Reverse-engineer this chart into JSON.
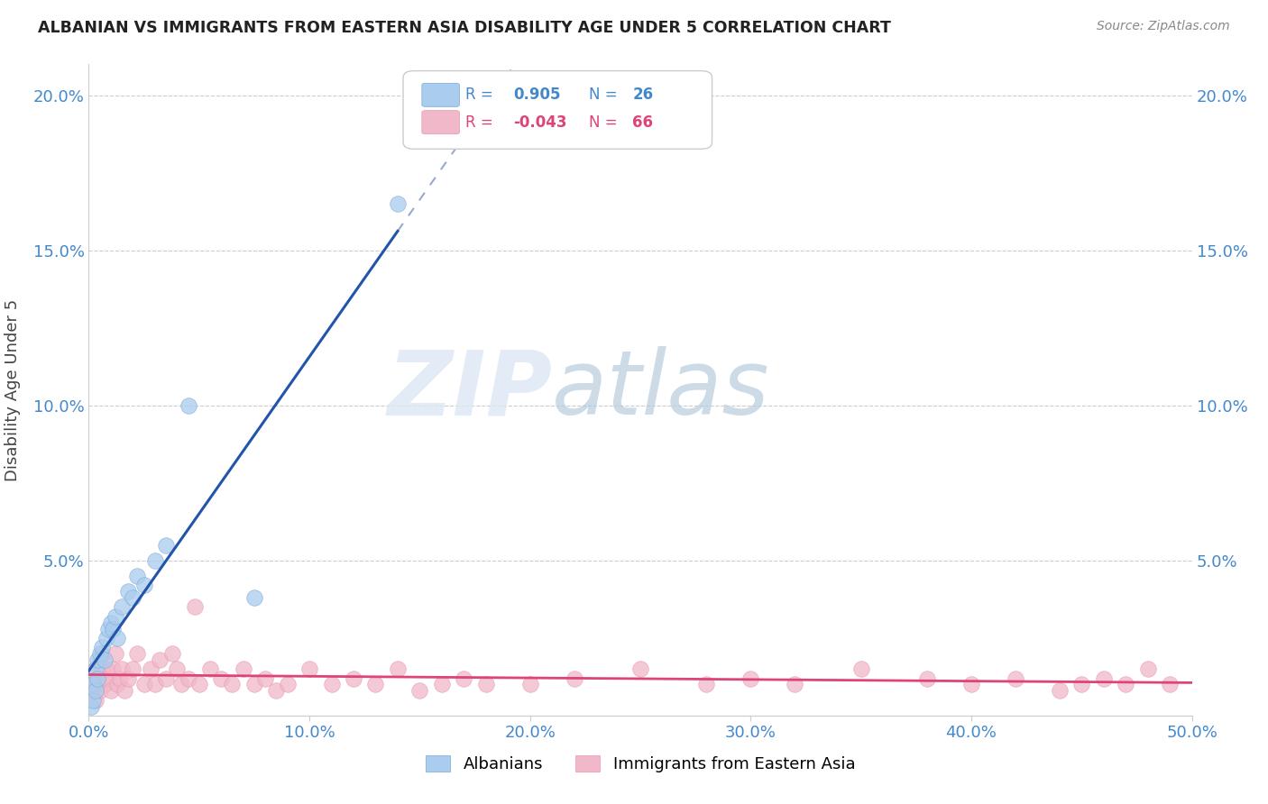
{
  "title": "ALBANIAN VS IMMIGRANTS FROM EASTERN ASIA DISABILITY AGE UNDER 5 CORRELATION CHART",
  "source": "Source: ZipAtlas.com",
  "ylabel": "Disability Age Under 5",
  "xlim": [
    0.0,
    0.5
  ],
  "ylim": [
    0.0,
    0.21
  ],
  "xticks": [
    0.0,
    0.1,
    0.2,
    0.3,
    0.4,
    0.5
  ],
  "xticklabels": [
    "0.0%",
    "10.0%",
    "20.0%",
    "30.0%",
    "40.0%",
    "50.0%"
  ],
  "yticks": [
    0.0,
    0.05,
    0.1,
    0.15,
    0.2
  ],
  "yticklabels_left": [
    "",
    "5.0%",
    "10.0%",
    "15.0%",
    "20.0%"
  ],
  "yticklabels_right": [
    "",
    "5.0%",
    "10.0%",
    "15.0%",
    "20.0%"
  ],
  "albanians_color": "#aaccee",
  "albanians_edge": "#7aa8d8",
  "immigrants_color": "#f0b8c8",
  "immigrants_edge": "#e896b0",
  "trend_blue": "#2255aa",
  "trend_pink": "#dd4477",
  "trend_dashed_color": "#99aacc",
  "legend_R_blue": "0.905",
  "legend_N_blue": "26",
  "legend_R_pink": "-0.043",
  "legend_N_pink": "66",
  "watermark_zip": "ZIP",
  "watermark_atlas": "atlas",
  "albanians_x": [
    0.001,
    0.002,
    0.002,
    0.003,
    0.003,
    0.004,
    0.004,
    0.005,
    0.006,
    0.007,
    0.008,
    0.009,
    0.01,
    0.011,
    0.012,
    0.013,
    0.015,
    0.018,
    0.02,
    0.022,
    0.025,
    0.03,
    0.035,
    0.045,
    0.075,
    0.14
  ],
  "albanians_y": [
    0.003,
    0.005,
    0.01,
    0.008,
    0.015,
    0.012,
    0.018,
    0.02,
    0.022,
    0.018,
    0.025,
    0.028,
    0.03,
    0.028,
    0.032,
    0.025,
    0.035,
    0.04,
    0.038,
    0.045,
    0.042,
    0.05,
    0.055,
    0.1,
    0.038,
    0.165
  ],
  "immigrants_x": [
    0.001,
    0.002,
    0.003,
    0.003,
    0.004,
    0.005,
    0.005,
    0.006,
    0.006,
    0.007,
    0.008,
    0.009,
    0.01,
    0.011,
    0.012,
    0.013,
    0.014,
    0.015,
    0.016,
    0.018,
    0.02,
    0.022,
    0.025,
    0.028,
    0.03,
    0.032,
    0.035,
    0.038,
    0.04,
    0.042,
    0.045,
    0.048,
    0.05,
    0.055,
    0.06,
    0.065,
    0.07,
    0.075,
    0.08,
    0.085,
    0.09,
    0.1,
    0.11,
    0.12,
    0.13,
    0.14,
    0.15,
    0.16,
    0.17,
    0.18,
    0.2,
    0.22,
    0.25,
    0.28,
    0.3,
    0.32,
    0.35,
    0.38,
    0.4,
    0.42,
    0.44,
    0.45,
    0.46,
    0.47,
    0.48,
    0.49
  ],
  "immigrants_y": [
    0.01,
    0.008,
    0.005,
    0.015,
    0.012,
    0.008,
    0.018,
    0.015,
    0.02,
    0.01,
    0.015,
    0.012,
    0.008,
    0.015,
    0.02,
    0.01,
    0.012,
    0.015,
    0.008,
    0.012,
    0.015,
    0.02,
    0.01,
    0.015,
    0.01,
    0.018,
    0.012,
    0.02,
    0.015,
    0.01,
    0.012,
    0.035,
    0.01,
    0.015,
    0.012,
    0.01,
    0.015,
    0.01,
    0.012,
    0.008,
    0.01,
    0.015,
    0.01,
    0.012,
    0.01,
    0.015,
    0.008,
    0.01,
    0.012,
    0.01,
    0.01,
    0.012,
    0.015,
    0.01,
    0.012,
    0.01,
    0.015,
    0.012,
    0.01,
    0.012,
    0.008,
    0.01,
    0.012,
    0.01,
    0.015,
    0.01
  ],
  "blue_trend_x0": 0.0,
  "blue_trend_x1": 0.5,
  "pink_trend_x0": 0.0,
  "pink_trend_x1": 0.5,
  "grid_color": "#cccccc",
  "tick_color": "#4488cc",
  "spine_color": "#cccccc"
}
